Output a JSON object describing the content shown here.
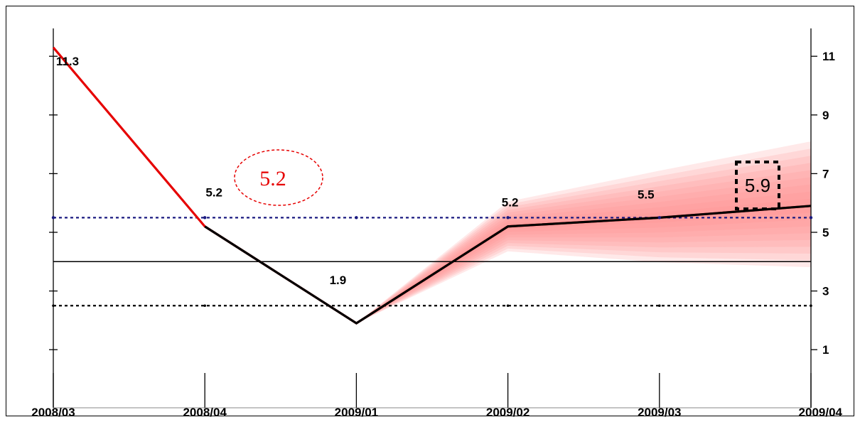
{
  "chart_data": {
    "type": "line",
    "categories": [
      "2008/03",
      "2008/04",
      "2009/01",
      "2009/02",
      "2009/03",
      "2009/04"
    ],
    "series": [
      {
        "values": [
          11.3,
          5.2,
          1.9,
          5.2,
          5.5,
          5.9
        ],
        "color": "#e60000"
      }
    ],
    "fan_chart": {
      "from": "2009/01",
      "to": "2009/04",
      "end_band_low": 3.7,
      "end_band_high": 8.1,
      "color": "#ff9090"
    },
    "data_labels": [
      {
        "category": "2008/03",
        "text": "11.3"
      },
      {
        "category": "2008/04",
        "text": "5.2"
      },
      {
        "category": "2009/01",
        "text": "1.9"
      },
      {
        "category": "2009/02",
        "text": "5.2"
      },
      {
        "category": "2009/03",
        "text": "5.5"
      }
    ],
    "annotations": [
      {
        "text": "5.2",
        "style": "red dashed ellipse"
      },
      {
        "text": "5.9",
        "style": "black dashed box"
      }
    ],
    "reference_lines": [
      {
        "value": 5.5,
        "style": "dotted",
        "color": "#1a1a80"
      },
      {
        "value": 4.0,
        "style": "solid",
        "color": "#000000"
      },
      {
        "value": 2.5,
        "style": "dotted",
        "color": "#000000"
      }
    ],
    "y_axis": {
      "position": "right",
      "ylim": [
        0,
        12
      ],
      "ticks": [
        1,
        3,
        5,
        7,
        9,
        11
      ]
    },
    "xlabel": "",
    "ylabel": "",
    "grid": false,
    "legend": "none"
  }
}
